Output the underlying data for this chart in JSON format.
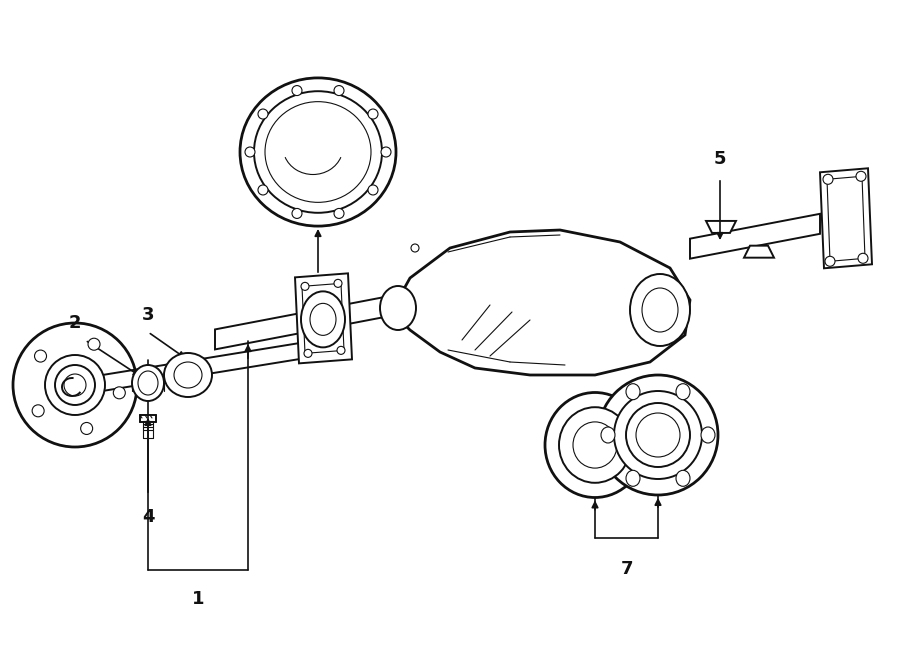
{
  "background_color": "#ffffff",
  "line_color": "#111111",
  "lw_thin": 0.8,
  "lw_med": 1.4,
  "lw_thick": 2.0,
  "label_fontsize": 13,
  "figsize": [
    9.0,
    6.61
  ],
  "dpi": 100
}
